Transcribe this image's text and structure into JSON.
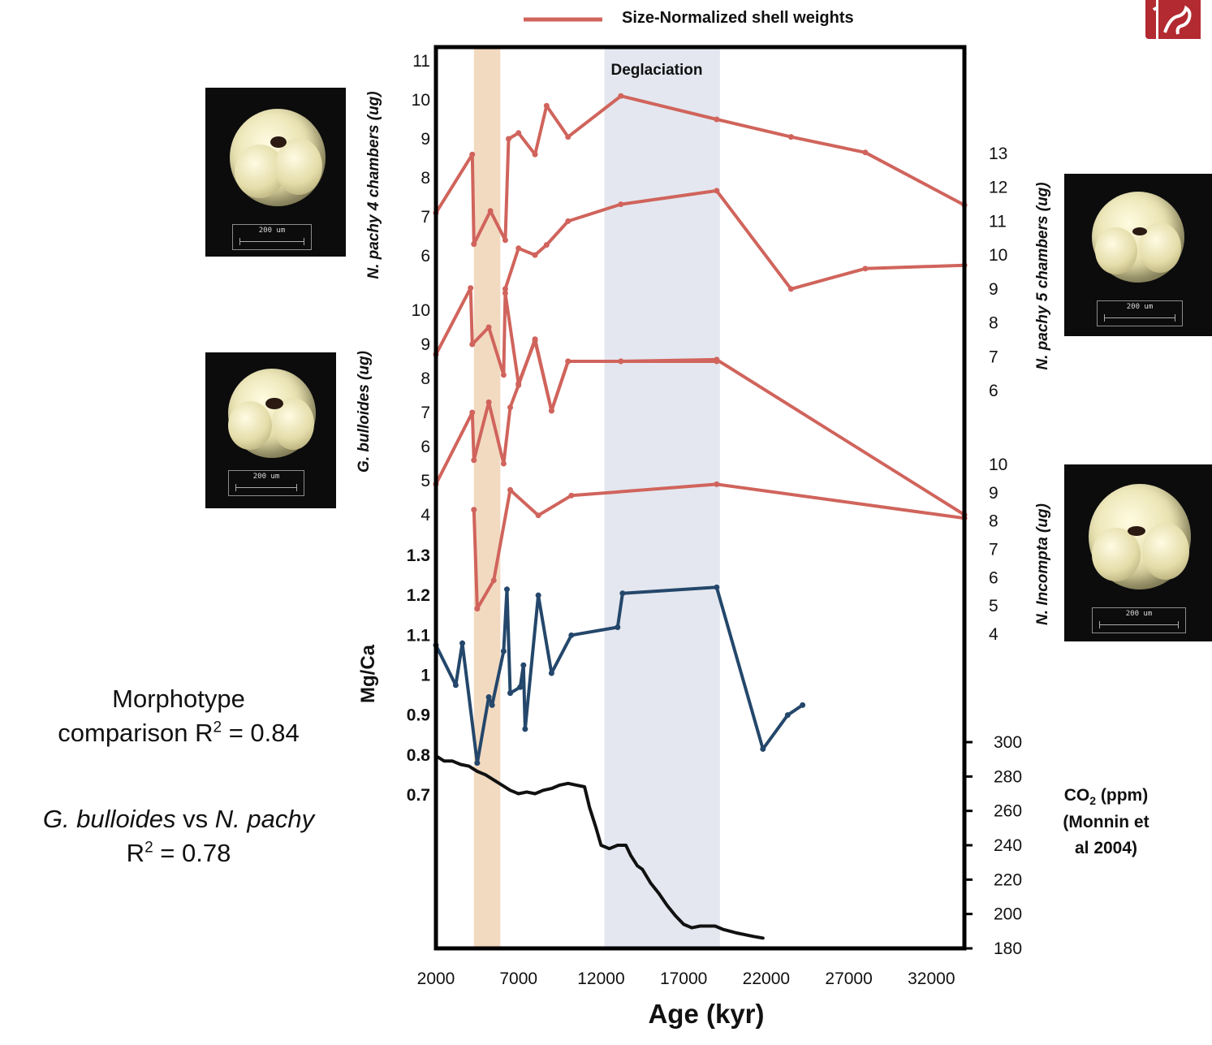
{
  "legend": {
    "label": "Size-Normalized shell weights",
    "color": "#d0645c"
  },
  "annotation": {
    "deglaciation": "Deglaciation"
  },
  "colors": {
    "red_series": "#d0645c",
    "blue_series": "#24476b",
    "co2_series": "#111111",
    "deglaciation_band": "#dfe3ec",
    "orange_band": "#f0d3b6"
  },
  "notes": {
    "morphotype_line1": "Morphotype",
    "morphotype_line2_prefix": "comparison R",
    "morphotype_line2_sup": "2",
    "morphotype_line2_suffix": " = 0.84",
    "species_g": "G. bulloides",
    "species_vs": " vs ",
    "species_n": "N. pachy",
    "r2_prefix": "R",
    "r2_sup": "2",
    "r2_suffix": " = 0.78"
  },
  "photos": [
    {
      "name": "photo-n-pachy-4-chambers",
      "scale": "200 um"
    },
    {
      "name": "photo-g-bulloides",
      "scale": "200 um"
    },
    {
      "name": "photo-n-pachy-5-chambers",
      "scale": "200 um"
    },
    {
      "name": "photo-n-incompta",
      "scale": "200 um"
    }
  ],
  "chart_data": {
    "type": "line",
    "xlabel": "Age (kyr)",
    "xlim": [
      2000,
      34000
    ],
    "x_ticks": [
      "2000",
      "7000",
      "12000",
      "17000",
      "22000",
      "27000",
      "32000"
    ],
    "shaded_bands": [
      {
        "label": "",
        "x": [
          4300,
          5900
        ],
        "color": "#f0d3b6"
      },
      {
        "label": "Deglaciation",
        "x": [
          12200,
          19200
        ],
        "color": "#dfe3ec"
      }
    ],
    "axes": [
      {
        "id": "n_pachy_4",
        "label": "N. pachy 4 chambers (ug)",
        "side": "left",
        "ticks": [
          "6",
          "7",
          "8",
          "9",
          "10",
          "11"
        ]
      },
      {
        "id": "g_bulloides",
        "label": "G. bulloides (ug)",
        "side": "left",
        "ticks": [
          "4",
          "5",
          "6",
          "7",
          "8",
          "9",
          "10"
        ]
      },
      {
        "id": "mg_ca",
        "label": "Mg/Ca",
        "side": "left",
        "ticks": [
          "0.7",
          "0.8",
          "0.9",
          "1",
          "1.1",
          "1.2",
          "1.3"
        ]
      },
      {
        "id": "n_pachy_5",
        "label": "N. pachy 5 chambers (ug)",
        "side": "right",
        "ticks": [
          "6",
          "7",
          "8",
          "9",
          "10",
          "11",
          "12",
          "13"
        ]
      },
      {
        "id": "n_incompta",
        "label": "N. Incompta (ug)",
        "side": "right",
        "ticks": [
          "4",
          "5",
          "6",
          "7",
          "8",
          "9",
          "10"
        ]
      },
      {
        "id": "co2",
        "label": "CO2 (ppm) (Monnin et al 2004)",
        "label_lines": [
          "CO",
          "2",
          " (ppm)",
          "(Monnin et",
          "al  2004)"
        ],
        "side": "right",
        "ticks": [
          "180",
          "200",
          "220",
          "240",
          "260",
          "280",
          "300"
        ]
      }
    ],
    "series": [
      {
        "axis": "n_pachy_4",
        "color": "#d0645c",
        "x": [
          2000,
          4200,
          4300,
          5300,
          6200,
          6400,
          7000,
          8000,
          8700,
          10000,
          13200,
          19000,
          23500,
          28000,
          34000
        ],
        "y": [
          7.1,
          8.6,
          6.3,
          7.15,
          6.4,
          9.0,
          9.15,
          8.6,
          9.85,
          9.05,
          10.1,
          9.5,
          9.05,
          8.65,
          7.3
        ]
      },
      {
        "axis": "n_pachy_5",
        "color": "#d0645c",
        "x": [
          6200,
          7000,
          8000,
          8700,
          10000,
          13200,
          19000,
          23500,
          28000,
          34000
        ],
        "y": [
          9.0,
          10.2,
          10.0,
          10.3,
          11.0,
          11.5,
          11.9,
          9.0,
          9.6,
          9.7
        ]
      },
      {
        "axis": "g_bulloides",
        "color": "#d0645c",
        "x": [
          2000,
          4100,
          4200,
          5200,
          6100,
          6200,
          7000,
          8000,
          9000,
          10000,
          13200,
          19000
        ],
        "y": [
          8.7,
          10.65,
          9.0,
          9.5,
          8.1,
          10.5,
          7.85,
          9.1,
          7.05,
          8.5,
          8.5,
          8.5
        ]
      },
      {
        "axis": "g_bulloides",
        "color": "#d0645c",
        "x": [
          2000,
          4200,
          4300,
          5200,
          6100,
          6500,
          7000,
          8000,
          9000,
          10000,
          13200,
          19000,
          34000
        ],
        "y": [
          4.9,
          7.0,
          5.6,
          7.3,
          5.5,
          7.15,
          7.8,
          9.15,
          7.05,
          8.5,
          8.5,
          8.55,
          4.0
        ]
      },
      {
        "axis": "n_incompta",
        "color": "#d0645c",
        "x": [
          4300,
          4500,
          5500,
          6500,
          8200,
          10200,
          19000,
          34000
        ],
        "y": [
          8.4,
          4.9,
          5.9,
          9.1,
          8.2,
          8.9,
          9.3,
          8.1
        ]
      },
      {
        "axis": "mg_ca",
        "color": "#24476b",
        "x": [
          2000,
          3200,
          3600,
          4500,
          5200,
          5400,
          6100,
          6300,
          6500,
          7100,
          7300,
          7400,
          8200,
          9000,
          10200,
          13000,
          13300,
          19000,
          21800,
          23300,
          24200
        ],
        "y": [
          1.075,
          0.975,
          1.08,
          0.78,
          0.945,
          0.925,
          1.06,
          1.215,
          0.955,
          0.97,
          1.025,
          0.865,
          1.2,
          1.005,
          1.1,
          1.12,
          1.205,
          1.22,
          0.815,
          0.9,
          0.925
        ]
      },
      {
        "axis": "co2",
        "color": "#111111",
        "x": [
          2000,
          2500,
          3000,
          3500,
          4000,
          4500,
          5000,
          5500,
          6000,
          6500,
          7000,
          7500,
          8000,
          8500,
          9000,
          9500,
          10000,
          10500,
          11000,
          11300,
          11700,
          12000,
          12500,
          13000,
          13500,
          13800,
          14200,
          14500,
          15000,
          15500,
          16000,
          16500,
          17000,
          17500,
          18000,
          18400,
          18900,
          19400,
          19800,
          20200,
          20700,
          21200,
          21800
        ],
        "y": [
          292,
          289,
          289,
          287,
          286,
          283,
          281,
          278,
          275,
          272,
          270,
          271,
          270,
          272,
          273,
          275,
          276,
          275,
          274,
          262,
          250,
          240,
          238,
          240,
          240,
          234,
          228,
          226,
          218,
          212,
          205,
          199,
          194,
          192,
          193,
          193,
          193,
          191,
          190,
          189,
          188,
          187,
          186
        ]
      }
    ]
  }
}
